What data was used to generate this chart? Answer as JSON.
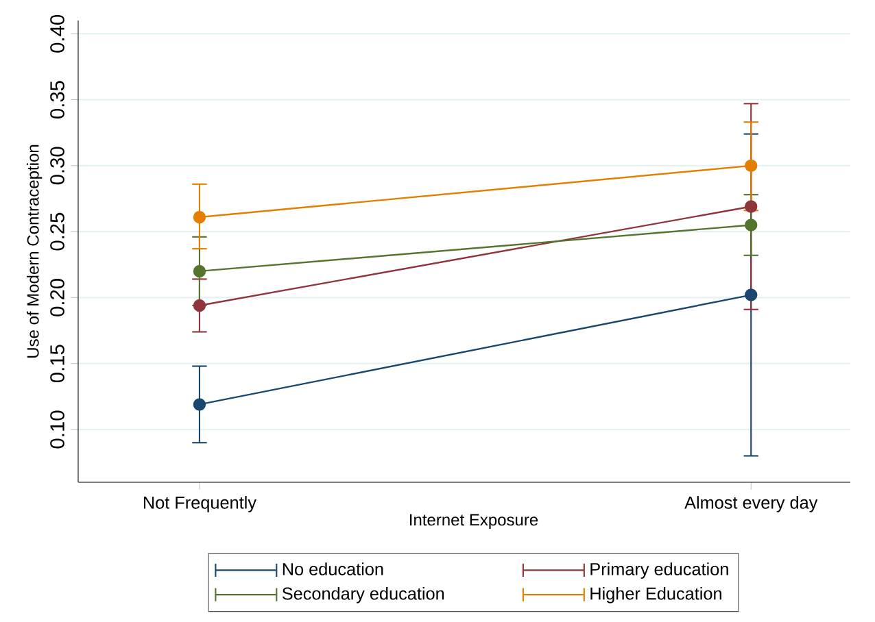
{
  "chart_data": {
    "type": "line",
    "xlabel": "Internet Exposure",
    "ylabel": "Use of Modern Contraception",
    "categories": [
      "Not Frequently",
      "Almost every day"
    ],
    "series": [
      {
        "name": "No education",
        "color": "#1a476f",
        "values": [
          0.119,
          0.202
        ],
        "errors": [
          [
            0.09,
            0.148
          ],
          [
            0.08,
            0.324
          ]
        ]
      },
      {
        "name": "Primary education",
        "color": "#90353b",
        "values": [
          0.194,
          0.269
        ],
        "errors": [
          [
            0.174,
            0.214
          ],
          [
            0.191,
            0.347
          ]
        ]
      },
      {
        "name": "Secondary education",
        "color": "#55752f",
        "values": [
          0.22,
          0.255
        ],
        "errors": [
          [
            0.194,
            0.246
          ],
          [
            0.232,
            0.278
          ]
        ]
      },
      {
        "name": "Higher Education",
        "color": "#e37e00",
        "values": [
          0.261,
          0.3
        ],
        "errors": [
          [
            0.237,
            0.286
          ],
          [
            0.266,
            0.333
          ]
        ]
      }
    ],
    "ylim": [
      0.06,
      0.41
    ],
    "yticks": [
      {
        "value": 0.1,
        "label": "0.10"
      },
      {
        "value": 0.15,
        "label": "0.15"
      },
      {
        "value": 0.2,
        "label": "0.20"
      },
      {
        "value": 0.25,
        "label": "0.25"
      },
      {
        "value": 0.3,
        "label": "0.30"
      },
      {
        "value": 0.35,
        "label": "0.35"
      },
      {
        "value": 0.4,
        "label": "0.40"
      }
    ],
    "grid": "y",
    "legend": "bottom",
    "marker": "circle",
    "line_style": "solid"
  }
}
